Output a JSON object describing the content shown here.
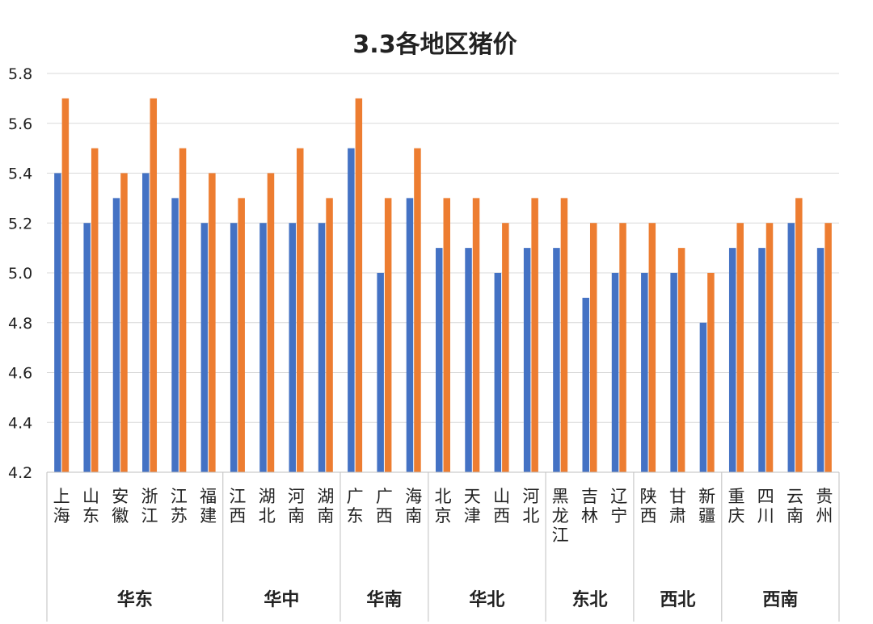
{
  "chart_data": {
    "type": "bar",
    "title": "3.3各地区猪价",
    "ylim": [
      4.2,
      5.8
    ],
    "yticks": [
      "4.2",
      "4.4",
      "4.6",
      "4.8",
      "5.0",
      "5.2",
      "5.4",
      "5.6",
      "5.8"
    ],
    "grid": true,
    "legend": "none",
    "colors": [
      "#4472c4",
      "#ed7d31"
    ],
    "groups": [
      {
        "label": "华东",
        "categories": [
          "上海",
          "山东",
          "安徽",
          "浙江",
          "江苏",
          "福建"
        ]
      },
      {
        "label": "华中",
        "categories": [
          "江西",
          "湖北",
          "河南",
          "湖南"
        ]
      },
      {
        "label": "华南",
        "categories": [
          "广东",
          "广西",
          "海南"
        ]
      },
      {
        "label": "华北",
        "categories": [
          "北京",
          "天津",
          "山西",
          "河北"
        ]
      },
      {
        "label": "东北",
        "categories": [
          "黑龙江",
          "吉林",
          "辽宁"
        ]
      },
      {
        "label": "西北",
        "categories": [
          "陕西",
          "甘肃",
          "新疆"
        ]
      },
      {
        "label": "西南",
        "categories": [
          "重庆",
          "四川",
          "云南",
          "贵州"
        ]
      }
    ],
    "series": [
      {
        "values": [
          5.4,
          5.2,
          5.3,
          5.4,
          5.3,
          5.2,
          5.2,
          5.2,
          5.2,
          5.2,
          5.5,
          5.0,
          5.3,
          5.1,
          5.1,
          5.0,
          5.1,
          5.1,
          4.9,
          5.0,
          5.0,
          5.0,
          4.8,
          5.1,
          5.1,
          5.2,
          5.1
        ]
      },
      {
        "values": [
          5.7,
          5.5,
          5.4,
          5.7,
          5.5,
          5.4,
          5.3,
          5.4,
          5.5,
          5.3,
          5.7,
          5.3,
          5.5,
          5.3,
          5.3,
          5.2,
          5.3,
          5.3,
          5.2,
          5.2,
          5.2,
          5.1,
          5.0,
          5.2,
          5.2,
          5.3,
          5.2
        ]
      }
    ]
  }
}
